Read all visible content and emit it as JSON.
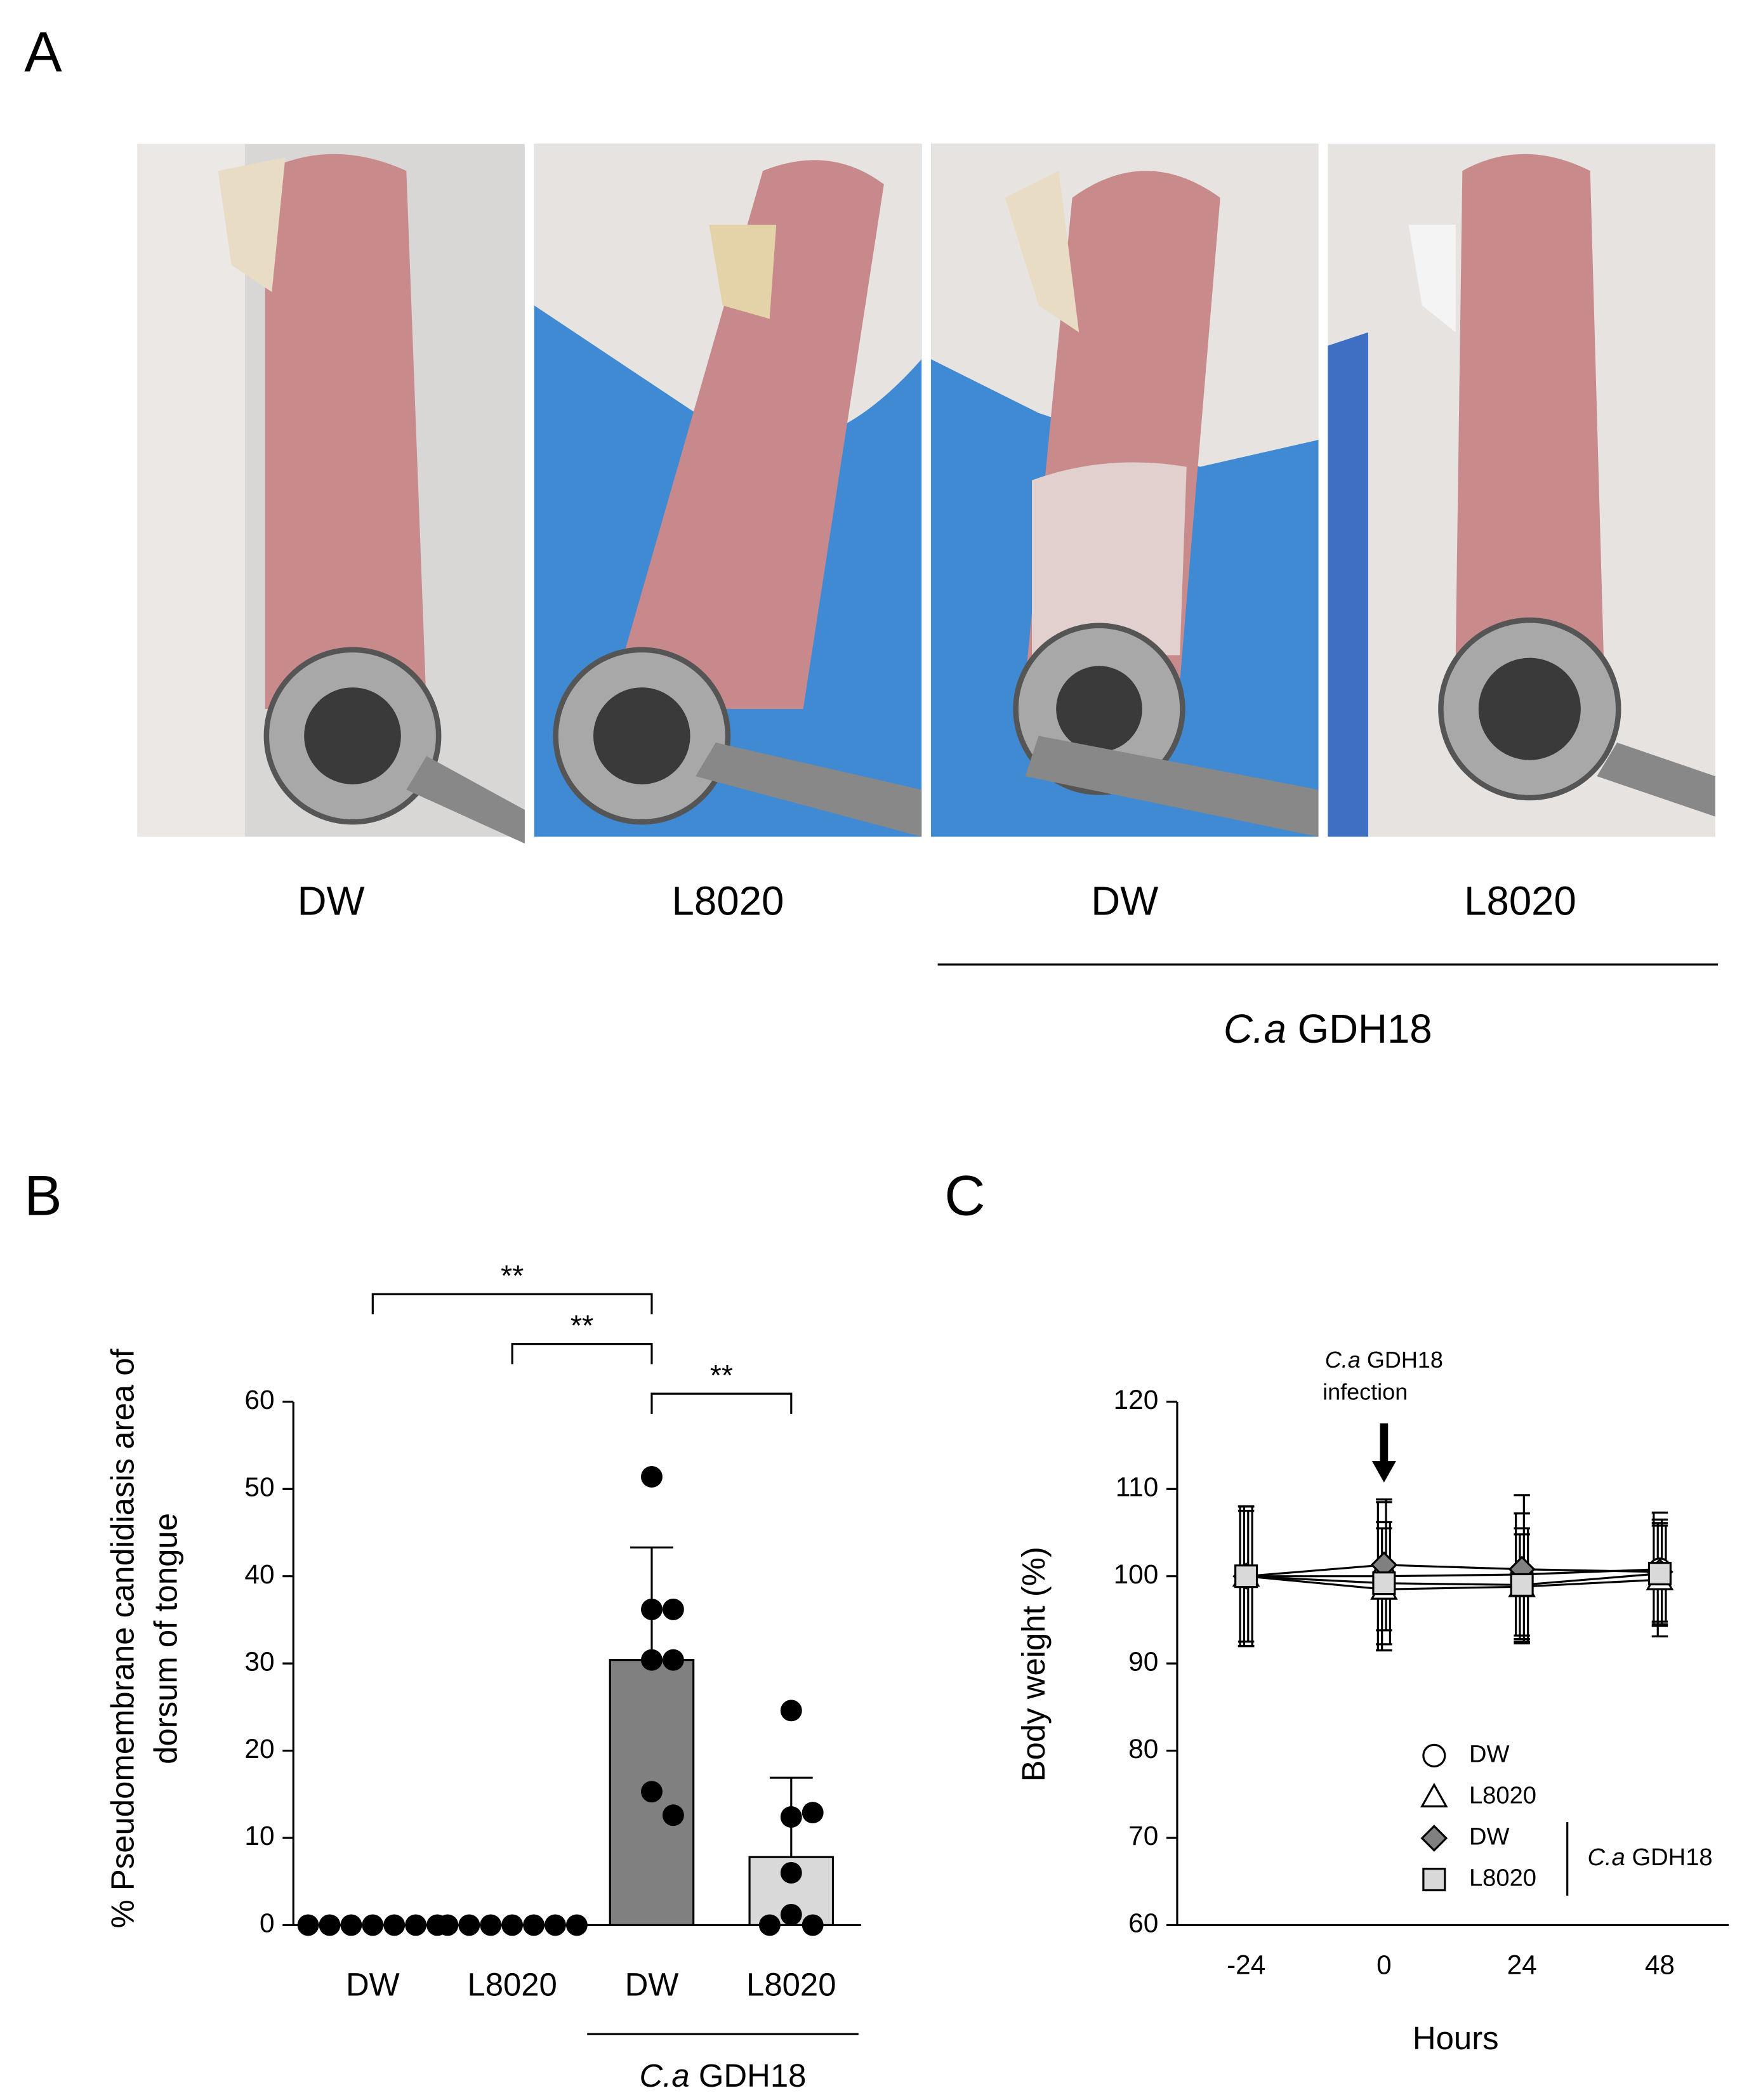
{
  "panels": {
    "A": "A",
    "B": "B",
    "C": "C"
  },
  "photos": {
    "labels": [
      "DW",
      "L8020",
      "DW",
      "L8020"
    ],
    "group_label_italic": "C.a",
    "group_label": "GDH18"
  },
  "chart_data": [
    {
      "type": "bar",
      "ylabel": [
        "% Pseudomembrane candidiasis area of",
        "dorsum of tongue"
      ],
      "categories": [
        "DW",
        "L8020",
        "DW",
        "L8020"
      ],
      "values": [
        0,
        0,
        30.4,
        7.8
      ],
      "errors": [
        0,
        0,
        12.9,
        9.1
      ],
      "colors": [
        "#ffffff",
        "#ffffff",
        "#808080",
        "#d9d9d9"
      ],
      "points": [
        [
          0,
          0,
          0,
          0,
          0,
          0,
          0
        ],
        [
          0,
          0,
          0,
          0,
          0,
          0,
          0
        ],
        [
          51.4,
          36.2,
          36.2,
          30.4,
          30.4,
          15.3,
          12.6
        ],
        [
          24.6,
          12.4,
          12.9,
          6.0,
          1.2,
          0,
          0
        ]
      ],
      "comparisons": [
        {
          "from": 0,
          "to": 2,
          "label": "**"
        },
        {
          "from": 1,
          "to": 2,
          "label": "**"
        },
        {
          "from": 2,
          "to": 3,
          "label": "**"
        }
      ],
      "group": {
        "from": 2,
        "to": 3,
        "label_italic": "C.a",
        "label": "GDH18"
      },
      "ylim": [
        0,
        60
      ],
      "yticks": [
        0,
        10,
        20,
        30,
        40,
        50,
        60
      ]
    },
    {
      "type": "line",
      "xlabel": "Hours",
      "ylabel": "Body weight (%)",
      "x": [
        -24,
        0,
        24,
        48
      ],
      "xlim": [
        -36,
        60
      ],
      "xticks": [
        -24,
        0,
        24,
        48
      ],
      "ylim": [
        60,
        120
      ],
      "yticks": [
        60,
        70,
        80,
        90,
        100,
        110,
        120
      ],
      "line_color": "#000000",
      "series": [
        {
          "name": "DW",
          "marker": "circle",
          "color": "#ffffff",
          "values": [
            100,
            100,
            100.2,
            100.8
          ],
          "errors": [
            8,
            8.5,
            7,
            6.5
          ]
        },
        {
          "name": "L8020",
          "marker": "triangle",
          "color": "#ffffff",
          "values": [
            100,
            98.5,
            98.8,
            99.6
          ],
          "errors": [
            8,
            7,
            6,
            6.5
          ]
        },
        {
          "name": "DW",
          "marker": "diamond",
          "color": "#808080",
          "values": [
            100,
            101.3,
            100.8,
            100.5
          ],
          "errors": [
            7.5,
            7.5,
            8.5,
            6
          ]
        },
        {
          "name": "L8020",
          "marker": "square",
          "color": "#d9d9d9",
          "values": [
            100,
            99.2,
            99.0,
            100.3
          ],
          "errors": [
            8,
            7,
            6.5,
            5.5
          ]
        }
      ],
      "legend_group": {
        "from": 2,
        "to": 3,
        "label_italic": "C.a",
        "label": "GDH18"
      },
      "annotation": {
        "x": 0,
        "label_italic": "C.a",
        "label": "GDH18",
        "label2": "infection"
      }
    }
  ]
}
